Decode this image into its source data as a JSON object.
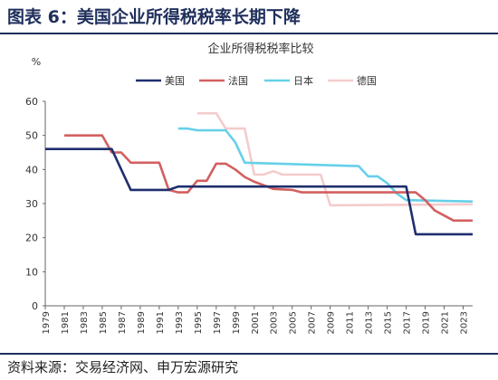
{
  "figure": {
    "title": "图表 6：美国企业所得税税率长期下降",
    "source": "资料来源：交易经济网、申万宏源研究"
  },
  "chart_data": {
    "type": "line",
    "title": "企业所得税税率比较",
    "xlabel": "",
    "ylabel": "%",
    "ylim": [
      0,
      60
    ],
    "yticks": [
      0,
      10,
      20,
      30,
      40,
      50,
      60
    ],
    "xlim": [
      1979,
      2024
    ],
    "xticks": [
      1979,
      1981,
      1983,
      1985,
      1987,
      1989,
      1991,
      1993,
      1995,
      1997,
      1999,
      2001,
      2003,
      2005,
      2007,
      2009,
      2011,
      2013,
      2015,
      2017,
      2019,
      2021,
      2023
    ],
    "grid": false,
    "legend_position": "top",
    "series": [
      {
        "name": "美国",
        "color": "#1f2f6e",
        "points": [
          [
            1979,
            46
          ],
          [
            1986,
            46
          ],
          [
            1987,
            40
          ],
          [
            1988,
            34
          ],
          [
            1992,
            34
          ],
          [
            1993,
            35
          ],
          [
            2017,
            35
          ],
          [
            2018,
            21
          ],
          [
            2024,
            21
          ]
        ]
      },
      {
        "name": "法国",
        "color": "#d35f5f",
        "points": [
          [
            1981,
            50
          ],
          [
            1985,
            50
          ],
          [
            1986,
            45
          ],
          [
            1987,
            45
          ],
          [
            1988,
            42
          ],
          [
            1991,
            42
          ],
          [
            1992,
            34
          ],
          [
            1993,
            33.3
          ],
          [
            1994,
            33.3
          ],
          [
            1995,
            36.7
          ],
          [
            1996,
            36.7
          ],
          [
            1997,
            41.7
          ],
          [
            1998,
            41.7
          ],
          [
            1999,
            40
          ],
          [
            2000,
            37.8
          ],
          [
            2001,
            36.4
          ],
          [
            2002,
            35.4
          ],
          [
            2003,
            34.3
          ],
          [
            2005,
            34
          ],
          [
            2006,
            33.3
          ],
          [
            2018,
            33.3
          ],
          [
            2019,
            31
          ],
          [
            2020,
            28
          ],
          [
            2021,
            26.5
          ],
          [
            2022,
            25
          ],
          [
            2024,
            25
          ]
        ]
      },
      {
        "name": "日本",
        "color": "#66d0e8",
        "points": [
          [
            1993,
            52
          ],
          [
            1994,
            52
          ],
          [
            1995,
            51.5
          ],
          [
            1998,
            51.5
          ],
          [
            1999,
            48
          ],
          [
            2000,
            42
          ],
          [
            2012,
            41
          ],
          [
            2013,
            38
          ],
          [
            2014,
            38
          ],
          [
            2015,
            36
          ],
          [
            2016,
            33
          ],
          [
            2017,
            31
          ],
          [
            2024,
            30.6
          ]
        ]
      },
      {
        "name": "德国",
        "color": "#f4cccc",
        "points": [
          [
            1995,
            56.5
          ],
          [
            1997,
            56.5
          ],
          [
            1998,
            52
          ],
          [
            2000,
            52
          ],
          [
            2001,
            38.5
          ],
          [
            2002,
            38.5
          ],
          [
            2003,
            39.5
          ],
          [
            2004,
            38.5
          ],
          [
            2008,
            38.5
          ],
          [
            2009,
            29.5
          ],
          [
            2024,
            29.8
          ]
        ]
      }
    ]
  }
}
